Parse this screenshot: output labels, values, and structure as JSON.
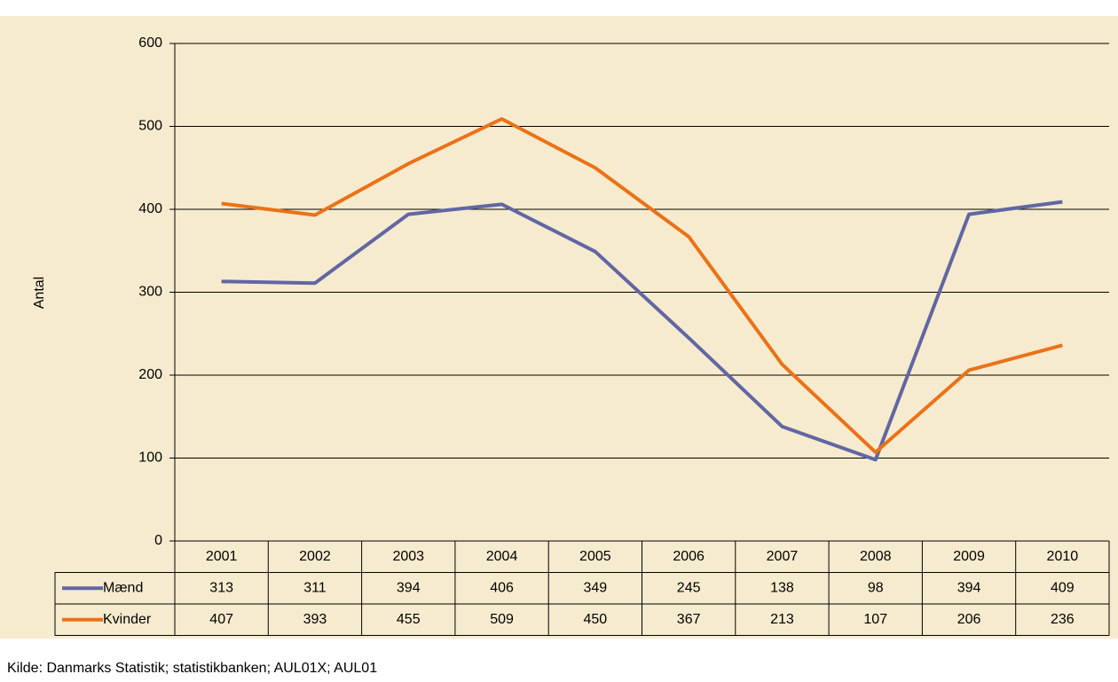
{
  "chart_data": {
    "type": "line",
    "y_label": "Antal",
    "categories": [
      "2001",
      "2002",
      "2003",
      "2004",
      "2005",
      "2006",
      "2007",
      "2008",
      "2009",
      "2010"
    ],
    "series": [
      {
        "name": "Mænd",
        "color": "#6166a3",
        "values": [
          313,
          311,
          394,
          406,
          349,
          245,
          138,
          98,
          394,
          409
        ]
      },
      {
        "name": "Kvinder",
        "color": "#ec7117",
        "values": [
          407,
          393,
          455,
          509,
          450,
          367,
          213,
          107,
          206,
          236
        ]
      }
    ],
    "ylim": [
      0,
      600
    ],
    "yticks": [
      0,
      100,
      200,
      300,
      400,
      500,
      600
    ],
    "grid": true,
    "source": "Kilde: Danmarks Statistik; statistikbanken; AUL01X; AUL01"
  }
}
